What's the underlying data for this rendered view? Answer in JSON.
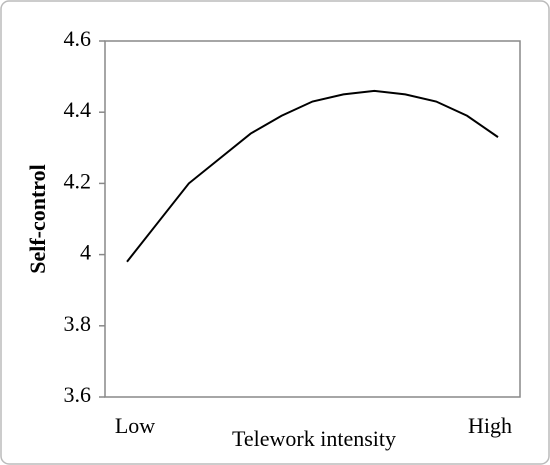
{
  "chart_data": {
    "type": "line",
    "x_label": "Telework intensity",
    "y_label": "Self-control",
    "categories": [
      "Low",
      null,
      null,
      null,
      null,
      null,
      null,
      null,
      null,
      null,
      null,
      null,
      "High"
    ],
    "series": [
      {
        "name": null,
        "color": "#000000",
        "values": [
          3.98,
          4.09,
          4.2,
          4.27,
          4.34,
          4.39,
          4.43,
          4.45,
          4.46,
          4.45,
          4.43,
          4.39,
          4.33
        ]
      }
    ],
    "ylim": [
      3.6,
      4.6
    ],
    "yticks": [
      3.6,
      3.8,
      4,
      4.2,
      4.4,
      4.6
    ],
    "grid": false
  }
}
